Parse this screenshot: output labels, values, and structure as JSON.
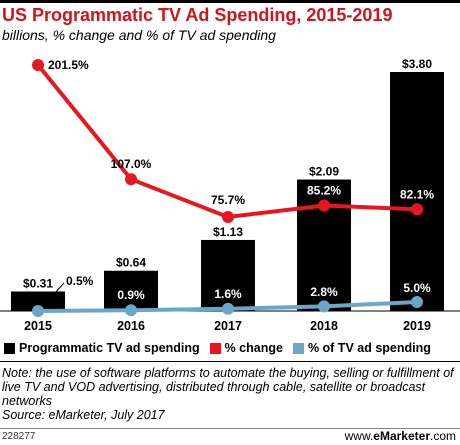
{
  "header": {
    "title": "US Programmatic TV Ad Spending, 2015-2019",
    "subtitle": "billions, % change and % of TV ad spending"
  },
  "chart_data": {
    "type": "bar",
    "title": "US Programmatic TV Ad Spending, 2015-2019",
    "subtitle": "billions, % change and % of TV ad spending",
    "categories": [
      "2015",
      "2016",
      "2017",
      "2018",
      "2019"
    ],
    "series": [
      {
        "name": "Programmatic TV ad spending",
        "type": "bar",
        "values": [
          0.31,
          0.64,
          1.13,
          2.09,
          3.8
        ],
        "labels": [
          "$0.31",
          "$0.64",
          "$1.13",
          "$2.09",
          "$3.80"
        ],
        "color": "#000000"
      },
      {
        "name": "% change",
        "type": "line",
        "values": [
          201.5,
          107.0,
          75.7,
          85.2,
          82.1
        ],
        "labels": [
          "201.5%",
          "107.0%",
          "75.7%",
          "85.2%",
          "82.1%"
        ],
        "color": "#e8171f"
      },
      {
        "name": "% of TV ad spending",
        "type": "line",
        "values": [
          0.5,
          0.9,
          1.6,
          2.8,
          5.0
        ],
        "labels": [
          "0.5%",
          "0.9%",
          "1.6%",
          "2.8%",
          "5.0%"
        ],
        "color": "#6aa6c8"
      }
    ],
    "legend_position": "bottom"
  },
  "footer": {
    "note": "Note: the use of software platforms to automate the buying, selling or fulfillment of live TV and VOD advertising, distributed through cable, satellite or broadcast networks",
    "source": "Source: eMarketer, July 2017",
    "chart_id": "228277",
    "brand_prefix": "www.",
    "brand_name": "eMarketer",
    "brand_suffix": ".com"
  }
}
